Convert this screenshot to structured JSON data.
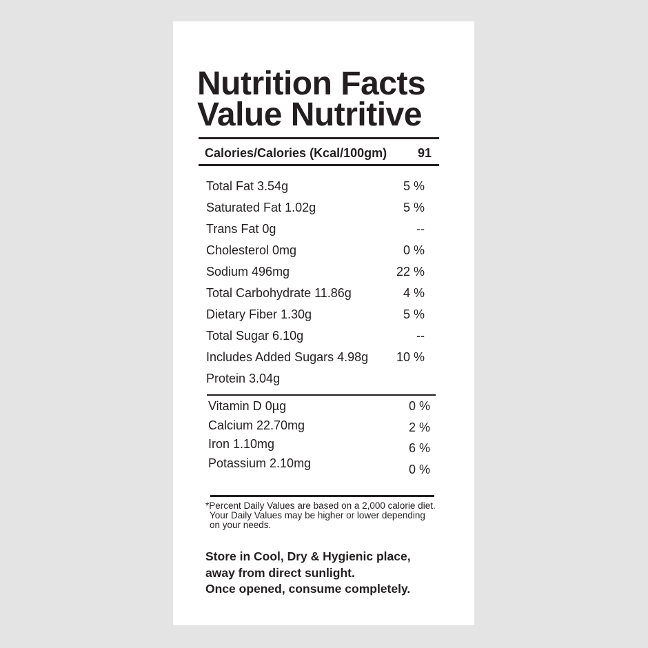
{
  "title": [
    "Nutrition Facts",
    "Value Nutritive"
  ],
  "calories": {
    "label": "Calories/Calories (Kcal/100gm)",
    "value": "91"
  },
  "nutrients": [
    {
      "name": "Total Fat 3.54g",
      "dv": "5 %"
    },
    {
      "name": "Saturated Fat 1.02g",
      "dv": "5 %"
    },
    {
      "name": "Trans Fat 0g",
      "dv": "--"
    },
    {
      "name": "Cholesterol 0mg",
      "dv": "0 %"
    },
    {
      "name": "Sodium 496mg",
      "dv": "22 %"
    },
    {
      "name": "Total Carbohydrate 11.86g",
      "dv": "4 %"
    },
    {
      "name": "Dietary Fiber 1.30g",
      "dv": "5 %"
    },
    {
      "name": "Total Sugar 6.10g",
      "dv": "--"
    },
    {
      "name": "Includes Added Sugars 4.98g",
      "dv": "10 %"
    },
    {
      "name": "Protein 3.04g"
    }
  ],
  "vitamins": [
    {
      "name": "Vitamin D 0µg",
      "dv": "0 %"
    },
    {
      "name": "Calcium 22.70mg",
      "dv": "2 %"
    },
    {
      "name": "Iron 1.10mg",
      "dv": "6 %"
    },
    {
      "name": "Potassium 2.10mg",
      "dv": "0 %"
    }
  ],
  "footnote": [
    "*Percent Daily Values are based on a 2,000 calorie diet.",
    "Your Daily Values may be higher or lower depending",
    "on your needs."
  ],
  "storage": [
    "Store in Cool, Dry & Hygienic place,",
    "away from direct sunlight.",
    "Once opened, consume completely."
  ]
}
